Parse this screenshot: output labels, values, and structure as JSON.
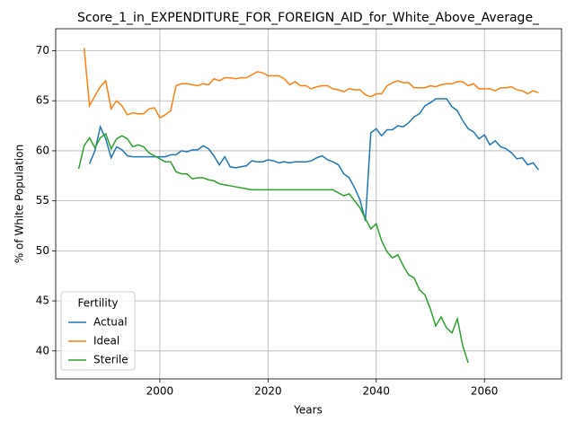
{
  "chart_data": {
    "type": "line",
    "title": "Score_1_in_EXPENDITURE_FOR_FOREIGN_AID_for_White_Above_Average_",
    "xlabel": "Years",
    "ylabel": "% of White Population",
    "legend_title": "Fertility",
    "legend": "lower left",
    "grid": true,
    "x": [
      1985,
      1986,
      1987,
      1988,
      1989,
      1990,
      1991,
      1992,
      1993,
      1994,
      1995,
      1996,
      1997,
      1998,
      1999,
      2000,
      2001,
      2002,
      2003,
      2004,
      2005,
      2006,
      2007,
      2008,
      2009,
      2010,
      2011,
      2012,
      2013,
      2014,
      2015,
      2016,
      2017,
      2018,
      2019,
      2020,
      2021,
      2022,
      2023,
      2024,
      2025,
      2026,
      2027,
      2028,
      2029,
      2030,
      2031,
      2032,
      2033,
      2034,
      2035,
      2036,
      2037,
      2038,
      2039,
      2040,
      2041,
      2042,
      2043,
      2044,
      2045,
      2046,
      2047,
      2048,
      2049,
      2050,
      2051,
      2052,
      2053,
      2054,
      2055,
      2056,
      2057,
      2058,
      2059,
      2060,
      2061,
      2062,
      2063,
      2064,
      2065,
      2066,
      2067,
      2068,
      2069,
      2070
    ],
    "xlim": [
      1980.75,
      2074.25
    ],
    "xticks": [
      2000,
      2020,
      2040,
      2060
    ],
    "ylim": [
      37.2,
      72.2
    ],
    "yticks": [
      40,
      45,
      50,
      55,
      60,
      65,
      70
    ],
    "series": [
      {
        "name": "Actual",
        "color": "#1f77b4",
        "values": [
          null,
          null,
          58.7,
          60.0,
          62.4,
          61.2,
          59.3,
          60.4,
          60.1,
          59.5,
          59.4,
          59.4,
          59.4,
          59.4,
          59.4,
          59.4,
          59.4,
          59.6,
          59.6,
          60.0,
          59.9,
          60.1,
          60.1,
          60.5,
          60.2,
          59.5,
          58.6,
          59.4,
          58.4,
          58.3,
          58.4,
          58.5,
          59.0,
          58.9,
          58.9,
          59.1,
          59.0,
          58.8,
          58.9,
          58.8,
          58.9,
          58.9,
          58.9,
          59.0,
          59.3,
          59.5,
          59.1,
          58.9,
          58.6,
          57.7,
          57.3,
          56.3,
          55.1,
          53.0,
          61.8,
          62.2,
          61.5,
          62.1,
          62.1,
          62.5,
          62.4,
          62.8,
          63.4,
          63.7,
          64.5,
          64.8,
          65.2,
          65.2,
          65.2,
          64.4,
          64.0,
          63.0,
          62.2,
          61.9,
          61.2,
          61.6,
          60.6,
          61.0,
          60.4,
          60.2,
          59.8,
          59.2,
          59.3,
          58.6,
          58.8,
          58.1
        ]
      },
      {
        "name": "Ideal",
        "color": "#ff7f0e",
        "values": [
          null,
          70.3,
          64.5,
          65.5,
          66.4,
          67.0,
          64.2,
          65.0,
          64.5,
          63.6,
          63.8,
          63.7,
          63.7,
          64.2,
          64.3,
          63.3,
          63.6,
          64.0,
          66.5,
          66.7,
          66.7,
          66.6,
          66.5,
          66.7,
          66.6,
          67.2,
          67.0,
          67.3,
          67.3,
          67.2,
          67.3,
          67.3,
          67.6,
          67.9,
          67.8,
          67.5,
          67.5,
          67.5,
          67.2,
          66.6,
          66.9,
          66.5,
          66.5,
          66.2,
          66.4,
          66.5,
          66.5,
          66.2,
          66.1,
          65.9,
          66.2,
          66.1,
          66.1,
          65.6,
          65.4,
          65.7,
          65.7,
          66.5,
          66.8,
          67.0,
          66.8,
          66.8,
          66.3,
          66.3,
          66.3,
          66.5,
          66.4,
          66.6,
          66.7,
          66.7,
          66.9,
          66.9,
          66.5,
          66.7,
          66.2,
          66.2,
          66.2,
          66.0,
          66.3,
          66.3,
          66.4,
          66.1,
          66.0,
          65.7,
          66.0,
          65.8
        ]
      },
      {
        "name": "Sterile",
        "color": "#2ca02c",
        "values": [
          58.2,
          60.5,
          61.3,
          60.3,
          61.3,
          61.7,
          60.2,
          61.2,
          61.5,
          61.2,
          60.4,
          60.6,
          60.4,
          59.8,
          59.5,
          59.2,
          58.9,
          58.9,
          57.9,
          57.7,
          57.7,
          57.2,
          57.3,
          57.3,
          57.1,
          57.0,
          56.7,
          56.6,
          56.5,
          56.4,
          56.3,
          56.2,
          56.1,
          56.1,
          56.1,
          56.1,
          56.1,
          56.1,
          56.1,
          56.1,
          56.1,
          56.1,
          56.1,
          56.1,
          56.1,
          56.1,
          56.1,
          56.1,
          55.8,
          55.5,
          55.7,
          55.0,
          54.3,
          53.2,
          52.2,
          52.7,
          51.0,
          49.9,
          49.3,
          49.6,
          48.5,
          47.6,
          47.3,
          46.1,
          45.6,
          44.2,
          42.5,
          43.4,
          42.3,
          41.8,
          43.2,
          40.5,
          38.8,
          null,
          null,
          null,
          null,
          null,
          null,
          null,
          null,
          null,
          null,
          null,
          null,
          null
        ]
      }
    ]
  }
}
